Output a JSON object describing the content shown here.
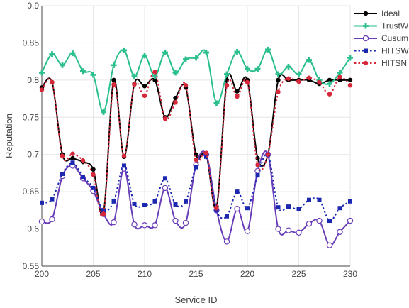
{
  "chart_data": {
    "type": "line",
    "xlabel": "Service ID",
    "ylabel": "Reputation",
    "xlim": [
      200,
      230
    ],
    "ylim": [
      0.55,
      0.9
    ],
    "xticks": [
      200,
      205,
      210,
      215,
      220,
      225,
      230
    ],
    "yticks": [
      0.55,
      0.6,
      0.65,
      0.7,
      0.75,
      0.8,
      0.85,
      0.9
    ],
    "grid": true,
    "legend_position": "top-right",
    "series": [
      {
        "name": "Ideal",
        "color": "#000000",
        "dash": "solid",
        "marker": "circle",
        "x": [
          200,
          201,
          202,
          203,
          204,
          205,
          206,
          207,
          208,
          209,
          210,
          211,
          212,
          213,
          214,
          215,
          216,
          217,
          218,
          219,
          220,
          221,
          222,
          223,
          224,
          225,
          226,
          227,
          228,
          229,
          230
        ],
        "y": [
          0.79,
          0.797,
          0.7,
          0.695,
          0.69,
          0.68,
          0.622,
          0.8,
          0.697,
          0.795,
          0.792,
          0.8,
          0.75,
          0.776,
          0.79,
          0.7,
          0.7,
          0.63,
          0.8,
          0.785,
          0.8,
          0.695,
          0.7,
          0.8,
          0.8,
          0.8,
          0.8,
          0.795,
          0.8,
          0.8,
          0.8
        ]
      },
      {
        "name": "TrustWS",
        "color": "#2bbf8e",
        "dash": "solid",
        "marker": "cross",
        "x": [
          200,
          201,
          202,
          203,
          204,
          205,
          206,
          207,
          208,
          209,
          210,
          211,
          212,
          213,
          214,
          215,
          216,
          217,
          218,
          219,
          220,
          221,
          222,
          223,
          224,
          225,
          226,
          227,
          228,
          229,
          230
        ],
        "y": [
          0.81,
          0.835,
          0.82,
          0.836,
          0.812,
          0.807,
          0.757,
          0.82,
          0.84,
          0.805,
          0.833,
          0.805,
          0.837,
          0.81,
          0.828,
          0.83,
          0.837,
          0.769,
          0.808,
          0.838,
          0.815,
          0.815,
          0.841,
          0.808,
          0.818,
          0.808,
          0.827,
          0.8,
          0.795,
          0.81,
          0.83
        ]
      },
      {
        "name": "Cusum",
        "color": "#6a3db8",
        "dash": "solid",
        "marker": "open-circle",
        "x": [
          200,
          201,
          202,
          203,
          204,
          205,
          206,
          207,
          208,
          209,
          210,
          211,
          212,
          213,
          214,
          215,
          216,
          217,
          218,
          219,
          220,
          221,
          222,
          223,
          224,
          225,
          226,
          227,
          228,
          229,
          230
        ],
        "y": [
          0.61,
          0.613,
          0.671,
          0.685,
          0.668,
          0.651,
          0.62,
          0.609,
          0.681,
          0.606,
          0.605,
          0.605,
          0.655,
          0.611,
          0.608,
          0.686,
          0.7,
          0.625,
          0.583,
          0.627,
          0.597,
          0.678,
          0.7,
          0.6,
          0.598,
          0.595,
          0.607,
          0.611,
          0.578,
          0.596,
          0.611
        ]
      },
      {
        "name": "HITSW",
        "color": "#1c28b0",
        "dash": "dot",
        "marker": "square",
        "x": [
          200,
          201,
          202,
          203,
          204,
          205,
          206,
          207,
          208,
          209,
          210,
          211,
          212,
          213,
          214,
          215,
          216,
          217,
          218,
          219,
          220,
          221,
          222,
          223,
          224,
          225,
          226,
          227,
          228,
          229,
          230
        ],
        "y": [
          0.635,
          0.64,
          0.674,
          0.689,
          0.67,
          0.655,
          0.625,
          0.637,
          0.685,
          0.634,
          0.632,
          0.637,
          0.668,
          0.633,
          0.637,
          0.683,
          0.697,
          0.625,
          0.617,
          0.65,
          0.628,
          0.672,
          0.7,
          0.629,
          0.63,
          0.627,
          0.639,
          0.639,
          0.611,
          0.628,
          0.637
        ]
      },
      {
        "name": "HITSN",
        "color": "#d62839",
        "dash": "dot",
        "marker": "circle",
        "x": [
          200,
          201,
          202,
          203,
          204,
          205,
          206,
          207,
          208,
          209,
          210,
          211,
          212,
          213,
          214,
          215,
          216,
          217,
          218,
          219,
          220,
          221,
          222,
          223,
          224,
          225,
          226,
          227,
          228,
          229,
          230
        ],
        "y": [
          0.787,
          0.797,
          0.698,
          0.701,
          0.692,
          0.673,
          0.62,
          0.794,
          0.698,
          0.794,
          0.779,
          0.811,
          0.748,
          0.77,
          0.793,
          0.693,
          0.702,
          0.628,
          0.793,
          0.778,
          0.797,
          0.686,
          0.7,
          0.784,
          0.802,
          0.798,
          0.803,
          0.797,
          0.781,
          0.804,
          0.793
        ]
      }
    ]
  }
}
